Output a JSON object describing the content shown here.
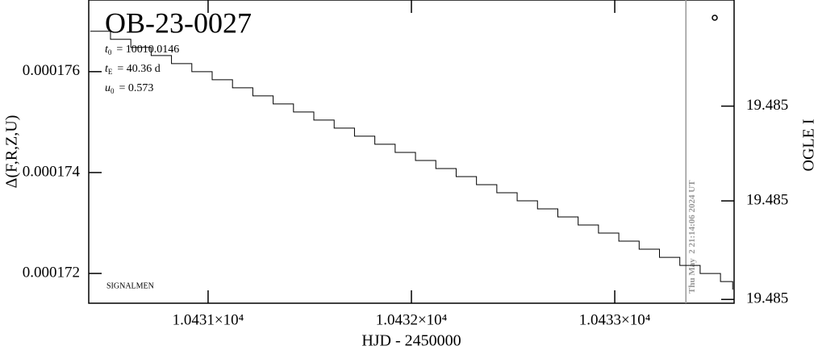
{
  "chart_data": {
    "type": "line",
    "drawstyle": "steps-post",
    "title": "OB-23-0027",
    "annotations": [
      {
        "symbol": "t",
        "sub": "0",
        "text": "= 10010.0146"
      },
      {
        "symbol": "t",
        "sub": "E",
        "text": "= 40.36 d"
      },
      {
        "symbol": "u",
        "sub": "0",
        "text": "= 0.573"
      }
    ],
    "footnote": "SIGNALMEN",
    "xlabel": "HJD - 2450000",
    "ylabel": "Δ(F,R,Z,U)",
    "y2label": "OGLE I",
    "xlim": [
      10430.413,
      10433.587
    ],
    "xticks": [
      {
        "value": 10431,
        "label": "1.0431×10⁴"
      },
      {
        "value": 10432,
        "label": "1.0432×10⁴"
      },
      {
        "value": 10433,
        "label": "1.0433×10⁴"
      }
    ],
    "ylim": [
      0.00017141,
      0.00017742
    ],
    "yticks": [
      0.000172,
      0.000174,
      0.000176
    ],
    "y2lim": [
      19.4846,
      19.4854
    ],
    "y2ticks": [
      {
        "value": 19.48512,
        "label": "19.485"
      },
      {
        "value": 19.48487,
        "label": "19.485"
      },
      {
        "value": 19.48461,
        "label": "19.485"
      }
    ],
    "vline": {
      "x": 10433.35,
      "label": "Thu May  2 21:14:06 2024 UT",
      "color": "#999999"
    },
    "x": [
      10430.42,
      10430.52,
      10430.62,
      10430.72,
      10430.82,
      10430.92,
      10431.02,
      10431.12,
      10431.22,
      10431.32,
      10431.42,
      10431.52,
      10431.62,
      10431.72,
      10431.82,
      10431.92,
      10432.02,
      10432.12,
      10432.22,
      10432.32,
      10432.42,
      10432.52,
      10432.62,
      10432.72,
      10432.82,
      10432.92,
      10433.02,
      10433.12,
      10433.22,
      10433.32,
      10433.42,
      10433.52,
      10433.58
    ],
    "values": [
      0.0001768,
      0.00017664,
      0.00017648,
      0.00017632,
      0.00017616,
      0.000176,
      0.00017584,
      0.00017568,
      0.00017552,
      0.00017536,
      0.0001752,
      0.00017504,
      0.00017488,
      0.00017472,
      0.00017456,
      0.0001744,
      0.00017424,
      0.00017408,
      0.00017392,
      0.00017376,
      0.0001736,
      0.00017344,
      0.00017328,
      0.00017312,
      0.00017296,
      0.0001728,
      0.00017264,
      0.00017248,
      0.00017232,
      0.00017216,
      0.000172,
      0.00017184,
      0.00017168
    ],
    "color": "#000000"
  }
}
